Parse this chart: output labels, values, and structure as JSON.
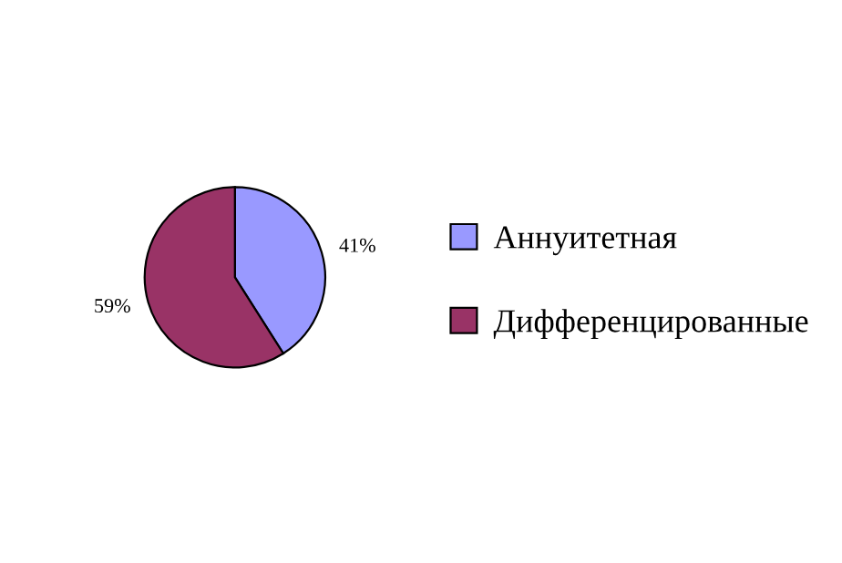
{
  "chart_data": {
    "type": "pie",
    "categories": [
      "Аннуитетная",
      "Дифференцированные"
    ],
    "values": [
      41,
      59
    ],
    "colors": [
      "#9999ff",
      "#993366"
    ],
    "value_labels": [
      "41%",
      "59%"
    ],
    "legend": "right"
  }
}
